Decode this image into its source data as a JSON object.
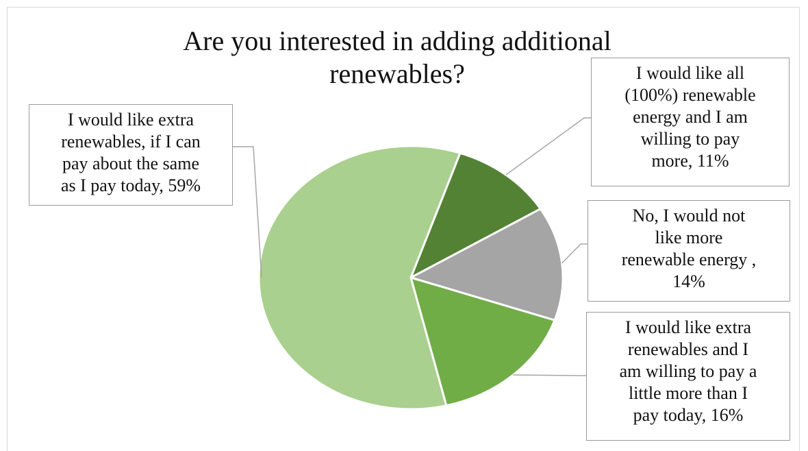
{
  "chart_data": {
    "type": "pie",
    "title": "Are you interested in adding additional renewables?",
    "legend": "none",
    "data_labels": "callouts",
    "slices": [
      {
        "label": "I would like extra renewables, if I can pay about the same as I pay today",
        "value": 59,
        "value_label": "59%",
        "color": "#a9d08e"
      },
      {
        "label": "I would like all (100%) renewable energy and I am willing to pay more",
        "value": 11,
        "value_label": "11%",
        "color": "#548235"
      },
      {
        "label": "No, I would not like more renewable energy",
        "value": 14,
        "value_label": "14%",
        "color": "#a5a5a5"
      },
      {
        "label": "I would like extra renewables and I am willing to pay a little more than I pay today",
        "value": 16,
        "value_label": "16%",
        "color": "#70ad47"
      }
    ]
  },
  "callouts": [
    {
      "text": "I would like extra\nrenewables, if I can\npay about the same\nas I pay today, 59%"
    },
    {
      "text": "I would like all\n(100%) renewable\nenergy and I am\nwilling to pay\n more, 11%"
    },
    {
      "text": "No, I would not\nlike more\nrenewable energy ,\n14%"
    },
    {
      "text": "I would like extra\nrenewables and I\nam willing to pay a\nlittle more than I\n pay today, 16%"
    }
  ]
}
